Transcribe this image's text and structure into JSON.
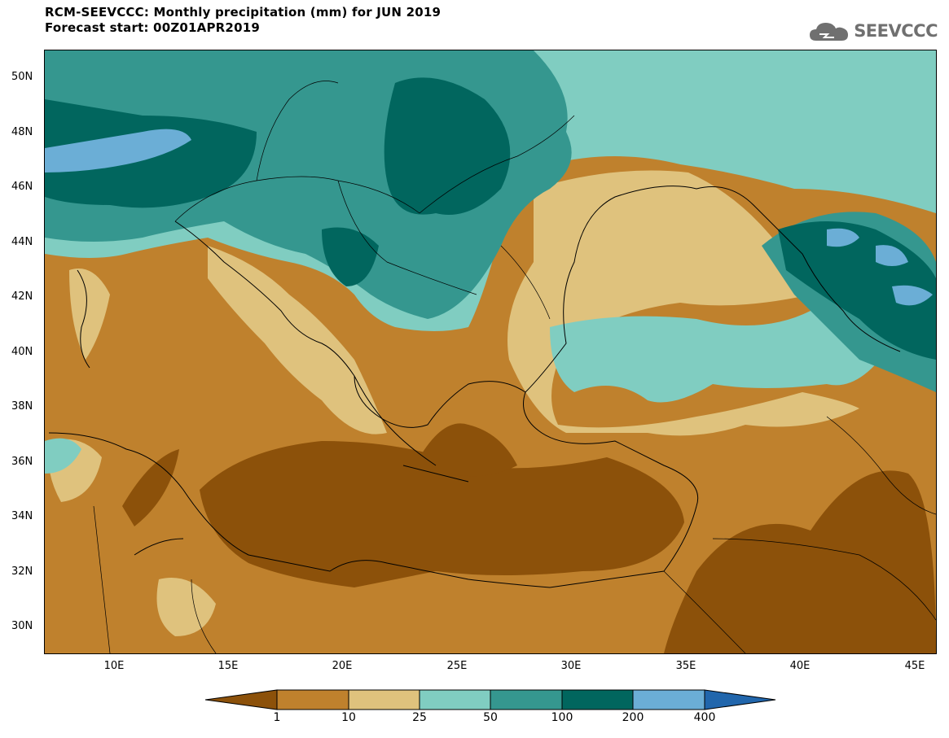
{
  "header": {
    "title": "RCM-SEEVCCC: Monthly precipitation (mm) for JUN 2019",
    "subtitle": "Forecast start: 00Z01APR2019"
  },
  "logo": {
    "text": "SEEVCCC",
    "icon": "cloud-icon"
  },
  "map": {
    "lat_labels": [
      "50N",
      "48N",
      "46N",
      "44N",
      "42N",
      "40N",
      "38N",
      "36N",
      "34N",
      "32N",
      "30N"
    ],
    "lon_labels": [
      "10E",
      "15E",
      "20E",
      "25E",
      "30E",
      "35E",
      "40E",
      "45E"
    ],
    "colors": {
      "c1": "#8c510a",
      "c2": "#bf812d",
      "c3": "#dfc27d",
      "c4": "#80cdc1",
      "c5": "#35978f",
      "c6": "#01665e",
      "c7": "#6baed6",
      "c8": "#2166ac"
    }
  },
  "colorbar": {
    "labels": [
      "1",
      "10",
      "25",
      "50",
      "100",
      "200",
      "400"
    ],
    "colors": [
      "#8c510a",
      "#bf812d",
      "#dfc27d",
      "#80cdc1",
      "#35978f",
      "#01665e",
      "#6baed6",
      "#2166ac"
    ]
  }
}
